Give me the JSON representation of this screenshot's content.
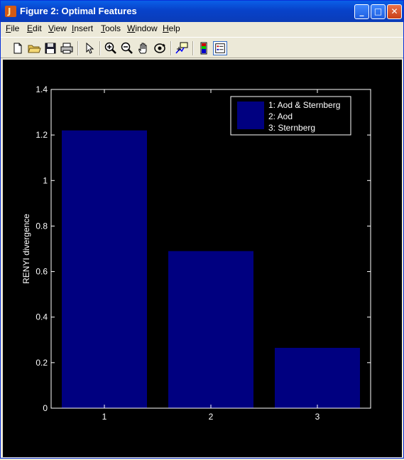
{
  "window": {
    "title": "Figure 2: Optimal Features",
    "minimize": "_",
    "maximize": "□",
    "close": "✕",
    "app_icon": "matlab-icon"
  },
  "menu": [
    {
      "label": "File",
      "u": "F",
      "rest": "ile"
    },
    {
      "label": "Edit",
      "u": "E",
      "rest": "dit"
    },
    {
      "label": "View",
      "u": "V",
      "rest": "iew"
    },
    {
      "label": "Insert",
      "u": "I",
      "rest": "nsert"
    },
    {
      "label": "Tools",
      "u": "T",
      "rest": "ools"
    },
    {
      "label": "Window",
      "u": "W",
      "rest": "indow"
    },
    {
      "label": "Help",
      "u": "H",
      "rest": "elp"
    }
  ],
  "toolbar": [
    "new-file-icon",
    "open-folder-icon",
    "save-icon",
    "print-icon",
    "pointer-icon",
    "zoom-in-icon",
    "zoom-out-icon",
    "pan-hand-icon",
    "rotate-3d-icon",
    "data-cursor-icon",
    "colorbar-icon",
    "legend-icon"
  ],
  "colors": {
    "bar": "#000080",
    "axes": "#ffffff",
    "background": "#000000"
  },
  "chart_data": {
    "type": "bar",
    "categories": [
      "1",
      "2",
      "3"
    ],
    "values": [
      1.22,
      0.69,
      0.265
    ],
    "ylabel": "RENYI divergence",
    "xlabel": "",
    "title": "",
    "ylim": [
      0,
      1.4
    ],
    "yticks": [
      "0",
      "0.2",
      "0.4",
      "0.6",
      "0.8",
      "1",
      "1.2",
      "1.4"
    ],
    "legend": [
      "1: Aod & Sternberg",
      "2: Aod",
      "3: Sternberg"
    ],
    "legend_position": "top-right",
    "grid": false
  }
}
